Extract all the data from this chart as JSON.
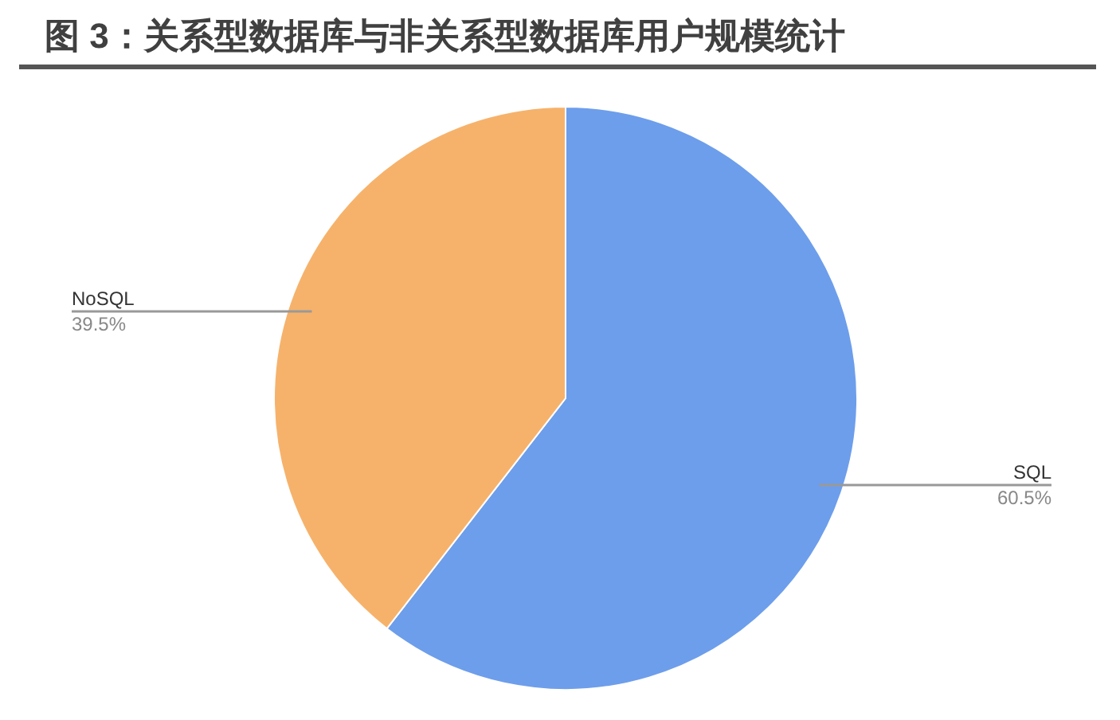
{
  "chart_data": {
    "type": "pie",
    "title": "图 3：关系型数据库与非关系型数据库用户规模统计",
    "categories": [
      "SQL",
      "NoSQL"
    ],
    "values": [
      60.5,
      39.5
    ],
    "colors": [
      "#6d9eeb",
      "#f6b26b"
    ],
    "value_labels": [
      "60.5%",
      "39.5%"
    ]
  }
}
